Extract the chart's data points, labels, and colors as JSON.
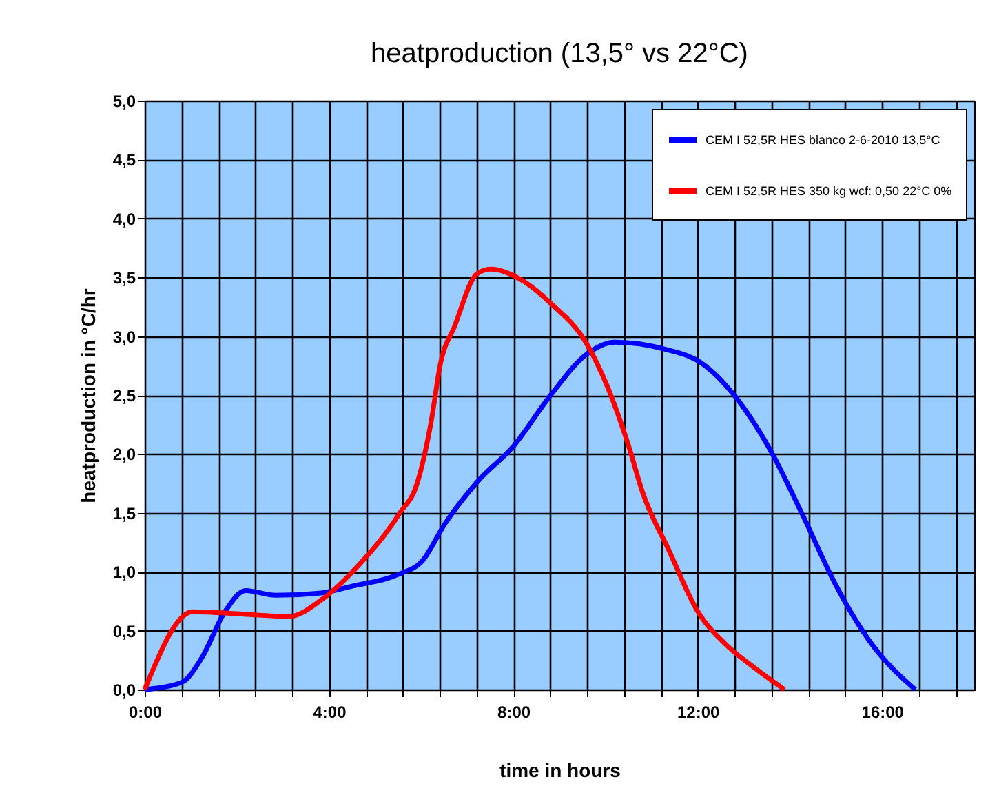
{
  "chart_data": {
    "type": "line",
    "title": "heatproduction (13,5° vs 22°C)",
    "xlabel": "time in hours",
    "ylabel": "heatproduction in °C/hr",
    "xlim": [
      0,
      18
    ],
    "xticks": [
      {
        "value": 0,
        "label": "0:00"
      },
      {
        "value": 0.8,
        "label": null
      },
      {
        "value": 1.6,
        "label": null
      },
      {
        "value": 2.4,
        "label": null
      },
      {
        "value": 3.2,
        "label": null
      },
      {
        "value": 4,
        "label": "4:00"
      },
      {
        "value": 4.8,
        "label": null
      },
      {
        "value": 5.6,
        "label": null
      },
      {
        "value": 6.4,
        "label": null
      },
      {
        "value": 7.2,
        "label": null
      },
      {
        "value": 8,
        "label": "8:00"
      },
      {
        "value": 8.8,
        "label": null
      },
      {
        "value": 9.6,
        "label": null
      },
      {
        "value": 10.4,
        "label": null
      },
      {
        "value": 11.2,
        "label": null
      },
      {
        "value": 12,
        "label": "12:00"
      },
      {
        "value": 12.8,
        "label": null
      },
      {
        "value": 13.6,
        "label": null
      },
      {
        "value": 14.4,
        "label": null
      },
      {
        "value": 15.2,
        "label": null
      },
      {
        "value": 16,
        "label": "16:00"
      },
      {
        "value": 16.8,
        "label": null
      },
      {
        "value": 17.6,
        "label": null
      }
    ],
    "ylim": [
      0,
      5
    ],
    "yticks": [
      {
        "value": 0,
        "label": "0,0"
      },
      {
        "value": 0.5,
        "label": "0,5"
      },
      {
        "value": 1,
        "label": "1,0"
      },
      {
        "value": 1.5,
        "label": "1,5"
      },
      {
        "value": 2,
        "label": "2,0"
      },
      {
        "value": 2.5,
        "label": "2,5"
      },
      {
        "value": 3,
        "label": "3,0"
      },
      {
        "value": 3.5,
        "label": "3,5"
      },
      {
        "value": 4,
        "label": "4,0"
      },
      {
        "value": 4.5,
        "label": "4,5"
      },
      {
        "value": 5,
        "label": "5,0"
      }
    ],
    "grid": true,
    "legend": "top right",
    "marker": "none",
    "line_style": "solid",
    "series": [
      {
        "name": "CEM I 52,5R HES blanco 2-6-2010 13,5°C",
        "color": "#0000ff",
        "x": [
          0,
          0.8,
          1.24,
          1.74,
          2.19,
          2.84,
          3.83,
          4.53,
          5.52,
          6.02,
          6.52,
          7.21,
          8.01,
          8.81,
          9.6,
          10.2,
          11.29,
          12.09,
          12.79,
          13.58,
          14.28,
          14.98,
          15.77,
          16.72
        ],
        "values": [
          0,
          0.06,
          0.27,
          0.66,
          0.84,
          0.8,
          0.82,
          0.88,
          0.98,
          1.09,
          1.41,
          1.76,
          2.07,
          2.5,
          2.85,
          2.95,
          2.89,
          2.77,
          2.5,
          2.03,
          1.48,
          0.9,
          0.39,
          0
        ]
      },
      {
        "name": "CEM I 52,5R HES 350 kg wcf: 0,50 22°C 0%",
        "color": "#ff0000",
        "x": [
          0,
          1.04,
          2.14,
          3.13,
          3.83,
          4.63,
          5.52,
          5.92,
          6.21,
          6.42,
          6.72,
          7.21,
          7.51,
          8.21,
          8.81,
          9.6,
          10.0,
          10.5,
          10.8,
          11.39,
          11.99,
          12.59,
          13.18,
          13.88
        ],
        "values": [
          0,
          0.66,
          0.64,
          0.62,
          0.76,
          1.05,
          1.49,
          1.76,
          2.26,
          2.77,
          3.08,
          3.53,
          3.57,
          3.47,
          3.28,
          2.93,
          2.61,
          2.07,
          1.68,
          1.17,
          0.67,
          0.39,
          0.2,
          0
        ]
      }
    ]
  }
}
